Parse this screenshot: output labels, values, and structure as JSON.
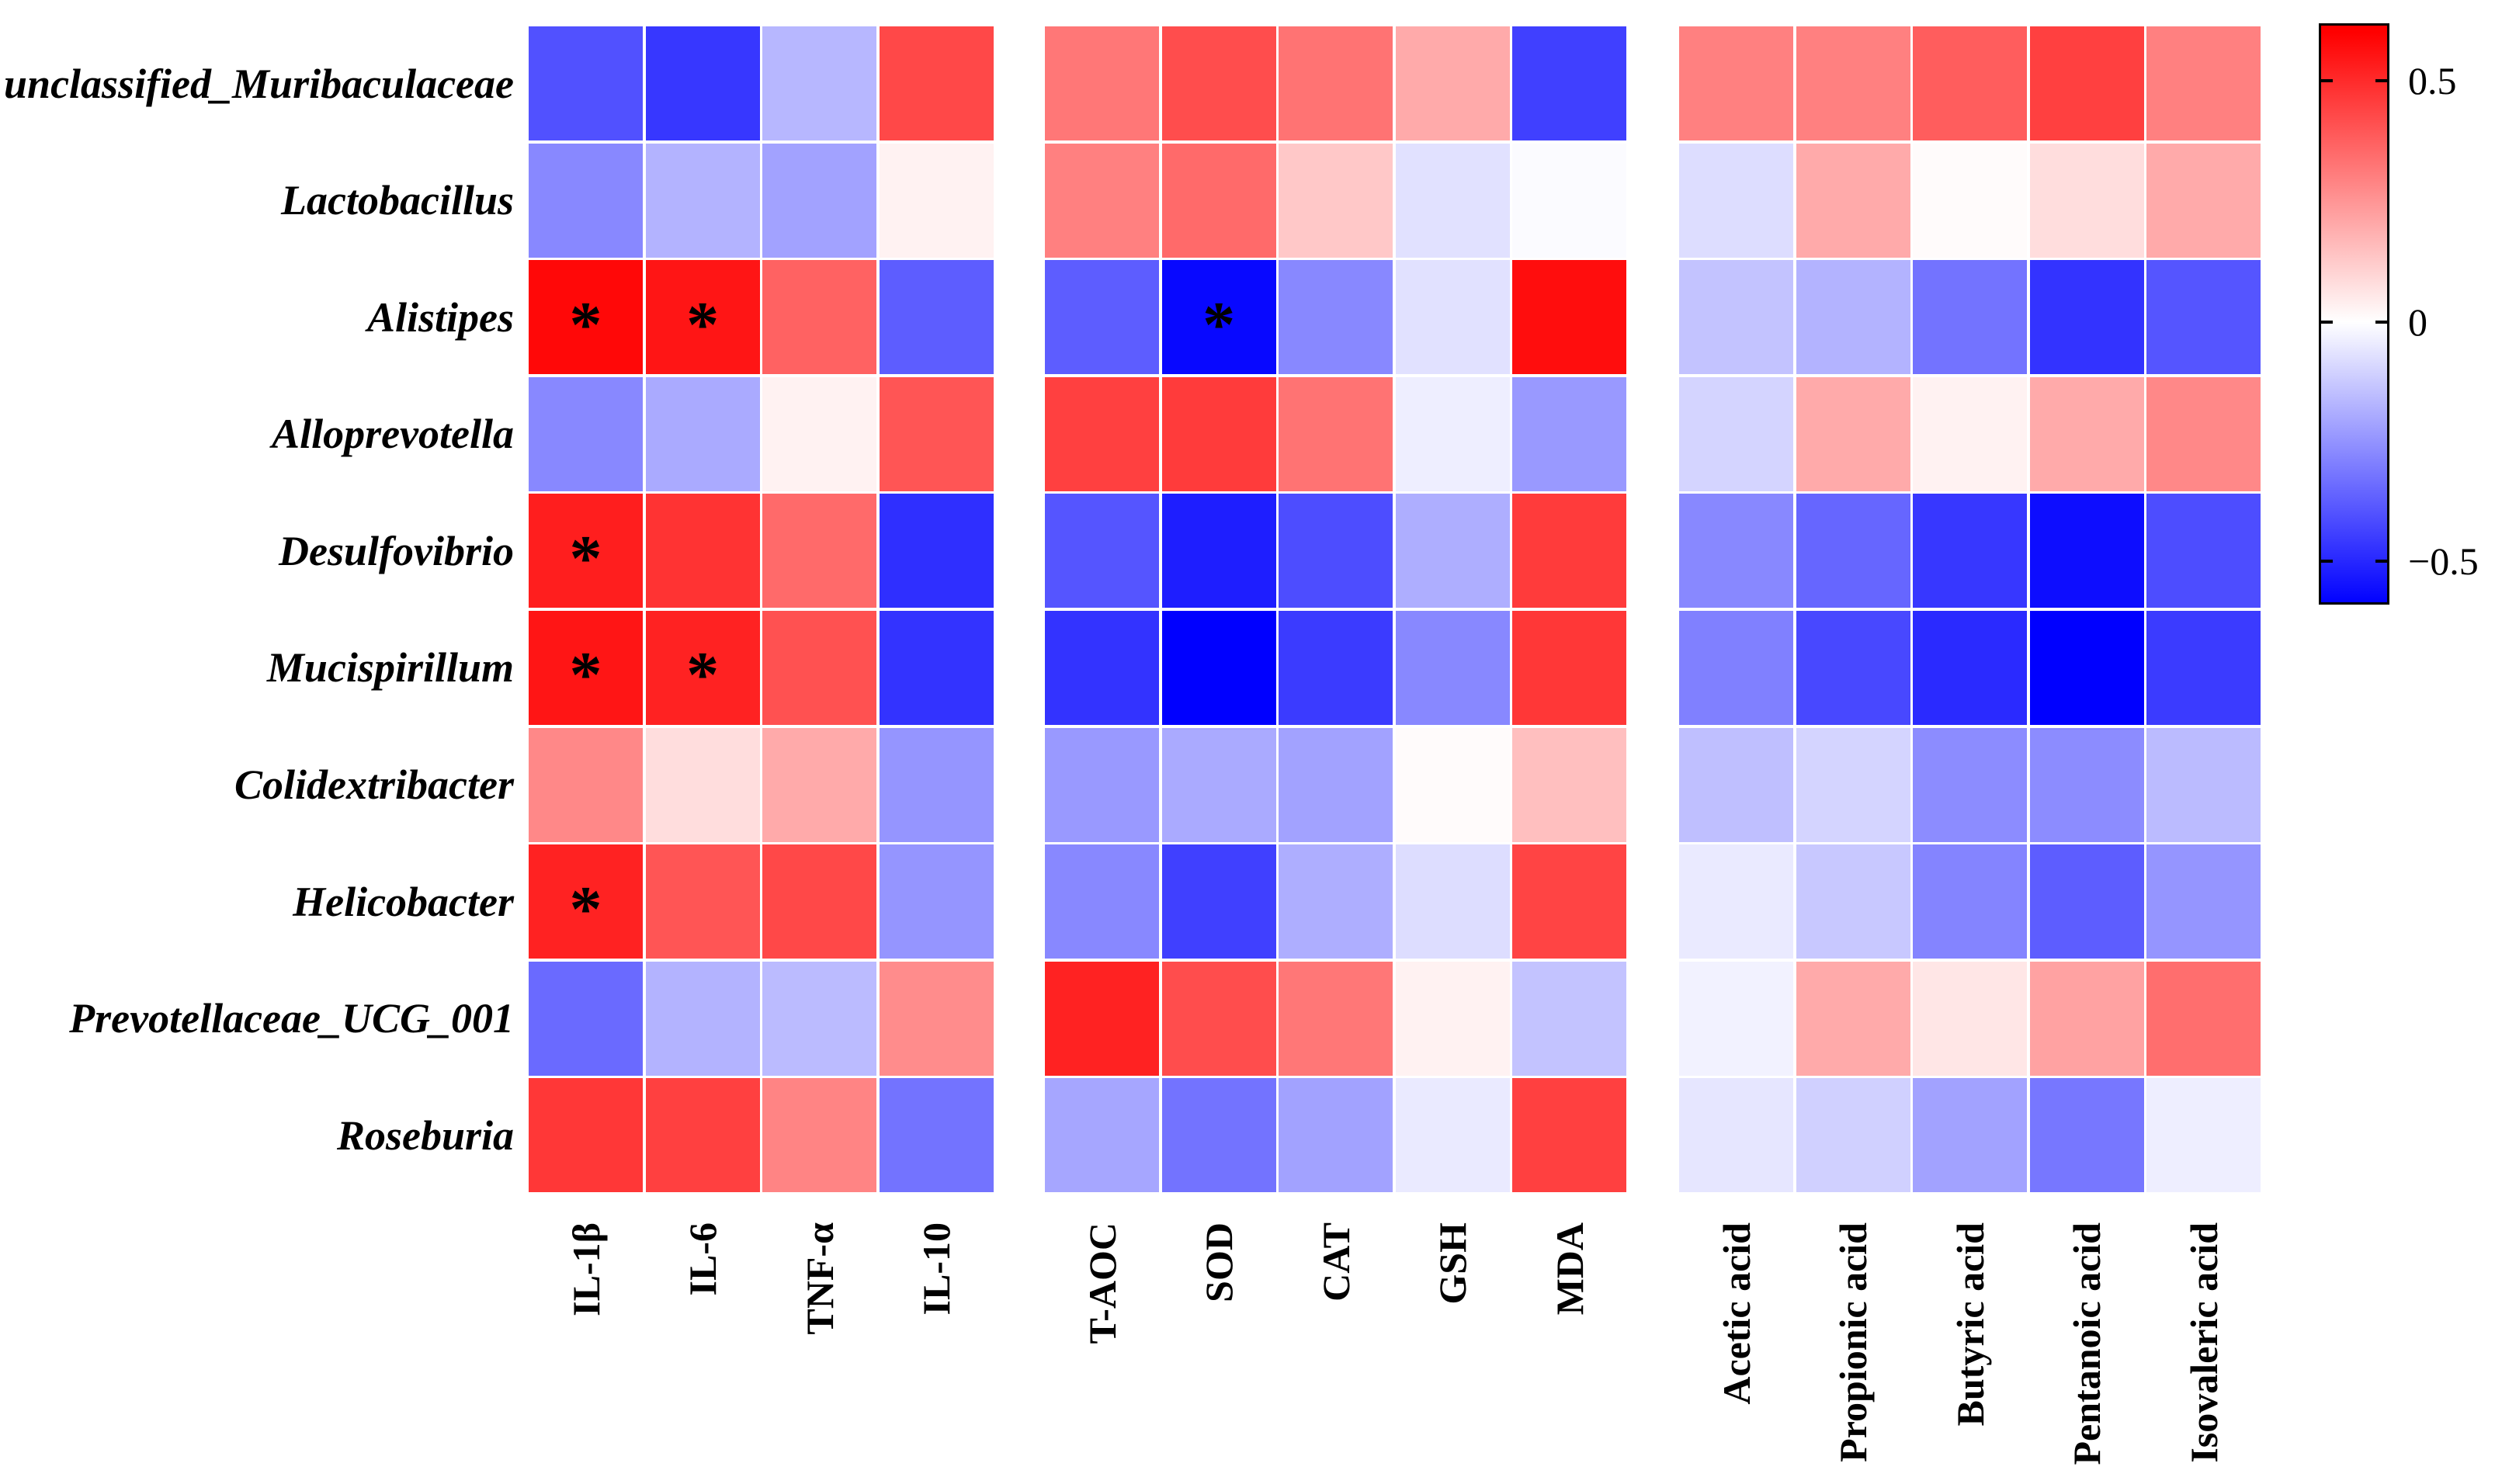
{
  "chart_data": {
    "type": "heatmap",
    "description": "Correlation heatmap between gut bacterial genera (rows) and cytokines, oxidative-stress markers and short-chain fatty acids (columns); red positive, blue negative correlation",
    "rows": [
      "unclassified_Muribaculaceae",
      "Lactobacillus",
      "Alistipes",
      "Alloprevotella",
      "Desulfovibrio",
      "Mucispirillum",
      "Colidextribacter",
      "Helicobacter",
      "Prevotellaceae_UCG_001",
      "Roseburia"
    ],
    "significance_symbol": "*",
    "panels": [
      {
        "name": "cytokines",
        "columns": [
          "IL-1β",
          "IL-6",
          "TNF-α",
          "IL-10"
        ],
        "values": [
          [
            -0.41,
            -0.47,
            -0.17,
            0.43
          ],
          [
            -0.28,
            -0.18,
            -0.22,
            0.03
          ],
          [
            0.58,
            0.55,
            0.37,
            -0.38
          ],
          [
            -0.28,
            -0.2,
            0.03,
            0.4
          ],
          [
            0.53,
            0.48,
            0.35,
            -0.49
          ],
          [
            0.55,
            0.52,
            0.41,
            -0.48
          ],
          [
            0.28,
            0.08,
            0.2,
            -0.25
          ],
          [
            0.52,
            0.4,
            0.43,
            -0.25
          ],
          [
            -0.35,
            -0.18,
            -0.16,
            0.27
          ],
          [
            0.47,
            0.45,
            0.29,
            -0.33
          ]
        ],
        "significant": [
          [
            2,
            0
          ],
          [
            2,
            1
          ],
          [
            4,
            0
          ],
          [
            5,
            0
          ],
          [
            5,
            1
          ],
          [
            7,
            0
          ]
        ]
      },
      {
        "name": "oxidative-stress-markers",
        "columns": [
          "T-AOC",
          "SOD",
          "CAT",
          "GSH",
          "MDA"
        ],
        "values": [
          [
            0.32,
            0.42,
            0.33,
            0.2,
            -0.45
          ],
          [
            0.3,
            0.35,
            0.13,
            -0.07,
            -0.01
          ],
          [
            -0.38,
            -0.58,
            -0.28,
            -0.07,
            0.57
          ],
          [
            0.45,
            0.46,
            0.33,
            -0.04,
            -0.24
          ],
          [
            -0.4,
            -0.53,
            -0.42,
            -0.19,
            0.46
          ],
          [
            -0.48,
            -0.6,
            -0.46,
            -0.28,
            0.47
          ],
          [
            -0.24,
            -0.2,
            -0.22,
            0.01,
            0.15
          ],
          [
            -0.28,
            -0.45,
            -0.19,
            -0.08,
            0.44
          ],
          [
            0.52,
            0.42,
            0.32,
            0.03,
            -0.14
          ],
          [
            -0.21,
            -0.33,
            -0.22,
            -0.05,
            0.45
          ]
        ],
        "significant": [
          [
            2,
            1
          ]
        ]
      },
      {
        "name": "short-chain-fatty-acids",
        "columns": [
          "Acetic acid",
          "Propionic acid",
          "Butyric acid",
          "Pentanoic acid",
          "Isovaleric acid"
        ],
        "values": [
          [
            0.3,
            0.3,
            0.38,
            0.45,
            0.3
          ],
          [
            -0.08,
            0.2,
            0.01,
            0.08,
            0.2
          ],
          [
            -0.14,
            -0.18,
            -0.33,
            -0.48,
            -0.4
          ],
          [
            -0.1,
            0.2,
            0.03,
            0.2,
            0.28
          ],
          [
            -0.28,
            -0.36,
            -0.47,
            -0.57,
            -0.42
          ],
          [
            -0.3,
            -0.43,
            -0.5,
            -0.6,
            -0.46
          ],
          [
            -0.15,
            -0.1,
            -0.27,
            -0.27,
            -0.16
          ],
          [
            -0.05,
            -0.13,
            -0.29,
            -0.38,
            -0.25
          ],
          [
            -0.03,
            0.2,
            0.06,
            0.22,
            0.34
          ],
          [
            -0.06,
            -0.11,
            -0.22,
            -0.32,
            -0.04
          ]
        ],
        "significant": []
      }
    ],
    "colorbar": {
      "tick_labels": [
        "0.5",
        "0",
        "−0.5"
      ],
      "tick_values": [
        0.5,
        0,
        -0.5
      ],
      "domain_max": 0.61,
      "domain_min": -0.59,
      "color_limit": 0.6,
      "color_max": "#ff0000",
      "color_mid": "#ffffff",
      "color_min": "#0000ff",
      "legend_position": "right"
    },
    "grid": false,
    "cell_gap_color": "#ffffff"
  }
}
